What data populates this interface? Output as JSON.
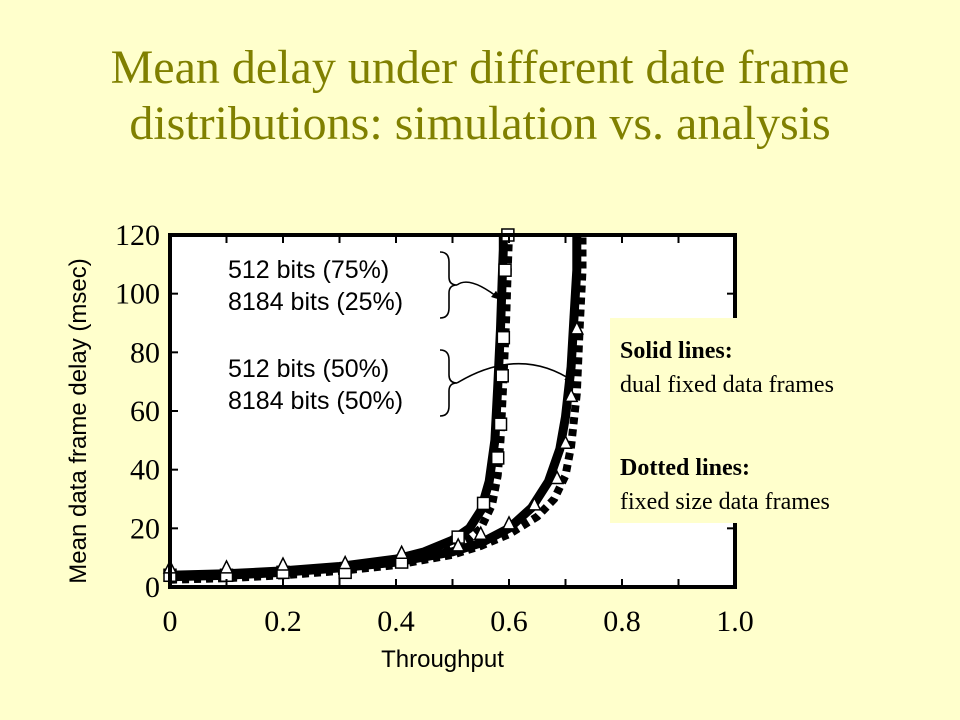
{
  "title_lines": [
    "Mean delay under different date frame",
    "distributions: simulation vs. analysis"
  ],
  "colors": {
    "background": "#FFFFCC",
    "title": "#808000",
    "plot_background": "#FFFFFF",
    "lines": "#000000"
  },
  "chart_data": {
    "type": "line",
    "title": "",
    "xlabel": "Throughput",
    "ylabel": "Mean data frame delay (msec)",
    "xlim": [
      0,
      1.0
    ],
    "ylim": [
      0,
      120
    ],
    "x_ticks": [
      0,
      0.2,
      0.4,
      0.6,
      0.8,
      1.0
    ],
    "x_tick_labels": [
      "0",
      "0.2",
      "0.4",
      "0.6",
      "0.8",
      "1.0"
    ],
    "y_ticks": [
      0,
      20,
      40,
      60,
      80,
      100,
      120
    ],
    "y_tick_labels": [
      "0",
      "20",
      "40",
      "60",
      "80",
      "100",
      "120"
    ],
    "series": [
      {
        "style": "solid",
        "x": [
          0.0,
          0.1,
          0.2,
          0.3,
          0.4,
          0.45,
          0.5,
          0.53,
          0.55,
          0.565,
          0.575,
          0.58,
          0.585,
          0.588,
          0.59,
          0.59
        ],
        "y": [
          4,
          4.5,
          5.5,
          7,
          9.5,
          12,
          16,
          20,
          26,
          36,
          50,
          68,
          88,
          105,
          115,
          120
        ]
      },
      {
        "style": "solid",
        "x": [
          0.0,
          0.1,
          0.2,
          0.3,
          0.4,
          0.5,
          0.55,
          0.6,
          0.64,
          0.67,
          0.69,
          0.7,
          0.71,
          0.715,
          0.72,
          0.72
        ],
        "y": [
          3.5,
          4,
          5,
          6.5,
          8.5,
          12,
          15,
          20,
          27,
          36,
          47,
          58,
          75,
          92,
          108,
          120
        ]
      },
      {
        "style": "dotted",
        "x": [
          0.0,
          0.1,
          0.2,
          0.3,
          0.4,
          0.45,
          0.5,
          0.53,
          0.55,
          0.57,
          0.58,
          0.585,
          0.59,
          0.595,
          0.598,
          0.6
        ],
        "y": [
          3,
          3.5,
          4.5,
          6,
          8.5,
          10.5,
          13.5,
          16.5,
          20,
          28,
          38,
          50,
          70,
          92,
          110,
          120
        ]
      },
      {
        "style": "dotted",
        "x": [
          0.0,
          0.1,
          0.2,
          0.3,
          0.4,
          0.5,
          0.55,
          0.6,
          0.65,
          0.68,
          0.7,
          0.71,
          0.72,
          0.725,
          0.73,
          0.73
        ],
        "y": [
          2.5,
          3,
          4,
          5.5,
          7.5,
          11,
          14,
          18,
          24,
          30,
          38,
          48,
          66,
          88,
          108,
          120
        ]
      }
    ],
    "markers": [
      {
        "shape": "square",
        "x": [
          0.0,
          0.1,
          0.2,
          0.31,
          0.41,
          0.51,
          0.555,
          0.58,
          0.585,
          0.588,
          0.59,
          0.593,
          0.598
        ],
        "y": [
          4,
          4,
          5,
          5,
          8.5,
          17,
          28.5,
          44,
          55.5,
          72,
          85,
          108,
          120
        ]
      },
      {
        "shape": "triangle",
        "x": [
          0.0,
          0.1,
          0.2,
          0.31,
          0.41,
          0.51,
          0.55,
          0.6,
          0.645,
          0.685,
          0.7,
          0.71,
          0.72
        ],
        "y": [
          6.5,
          6.5,
          7.5,
          8,
          11.5,
          14,
          18,
          21.5,
          28,
          37,
          49,
          65,
          88
        ]
      }
    ],
    "annotations": [
      {
        "lines": [
          "512 bits (75%)",
          "8184 bits (25%)"
        ]
      },
      {
        "lines": [
          "512 bits (50%)",
          "8184 bits (50%)"
        ]
      }
    ],
    "legend": {
      "placement": "right",
      "entries": [
        {
          "heading": "Solid lines:",
          "text": "dual fixed data frames"
        },
        {
          "heading": "Dotted lines:",
          "text": "fixed size data frames"
        }
      ]
    }
  }
}
